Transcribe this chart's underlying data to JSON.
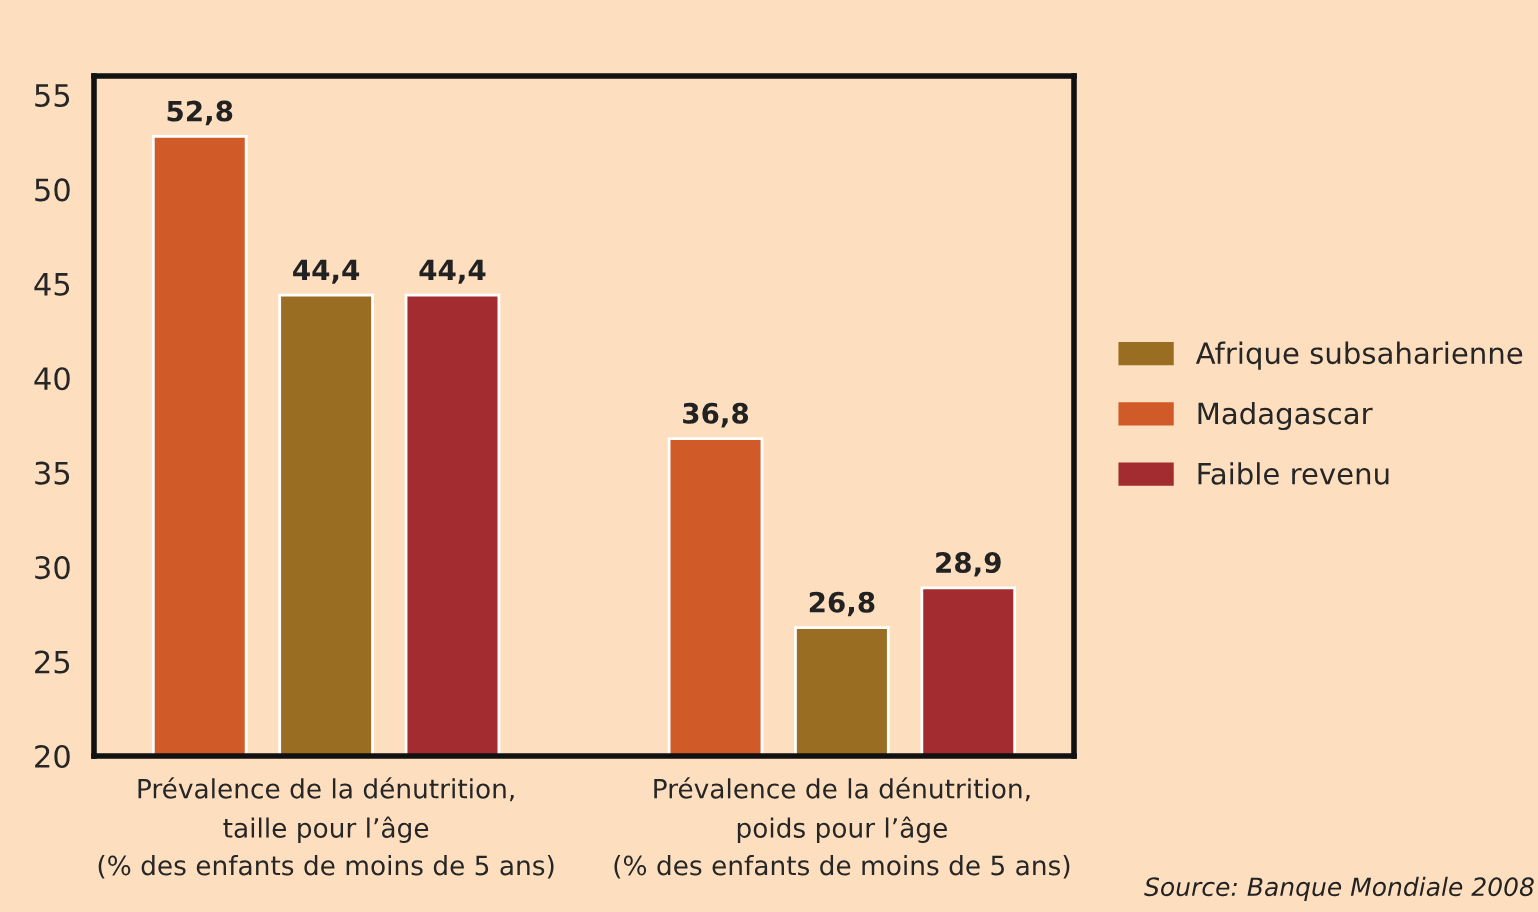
{
  "chart_data": {
    "type": "bar",
    "categories": [
      "Prévalence de la dénutrition,\ntaille pour l’âge\n(% des enfants de moins de 5 ans)",
      "Prévalence de la dénutrition,\npoids pour l’âge\n(% des enfants de moins de 5 ans)"
    ],
    "series": [
      {
        "name": "Madagascar",
        "color": "#d05a28",
        "values": [
          52.8,
          36.8
        ],
        "value_labels": [
          "52,8",
          "36,8"
        ]
      },
      {
        "name": "Afrique subsaharienne",
        "color": "#9a6e22",
        "values": [
          44.4,
          26.8
        ],
        "value_labels": [
          "44,4",
          "26,8"
        ]
      },
      {
        "name": "Faible revenu",
        "color": "#a32c30",
        "values": [
          44.4,
          28.9
        ],
        "value_labels": [
          "44,4",
          "28,9"
        ]
      }
    ],
    "ylim": [
      20,
      56
    ],
    "yticks": [
      20,
      25,
      30,
      35,
      40,
      45,
      50,
      55
    ],
    "grid": false,
    "legend": "right",
    "annotations": [
      "Source: Banque Mondiale 2008"
    ]
  }
}
